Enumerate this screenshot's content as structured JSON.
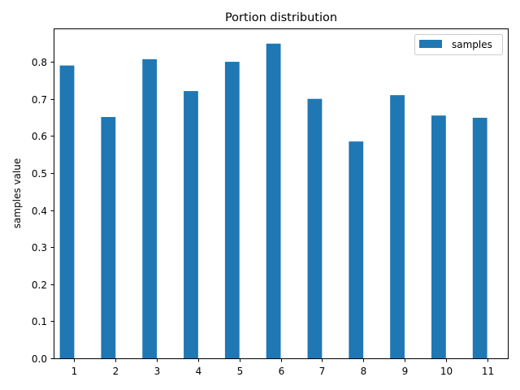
{
  "chart_data": {
    "type": "bar",
    "title": "Portion distribution",
    "xlabel": "",
    "ylabel": "samples value",
    "categories": [
      "1",
      "2",
      "3",
      "4",
      "5",
      "6",
      "7",
      "8",
      "9",
      "10",
      "11"
    ],
    "series": [
      {
        "name": "samples",
        "color": "#1f77b4",
        "values": [
          0.79,
          0.651,
          0.807,
          0.721,
          0.8,
          0.849,
          0.7,
          0.585,
          0.71,
          0.655,
          0.649
        ]
      }
    ],
    "ylim": [
      0,
      0.89
    ],
    "yticks": [
      0.0,
      0.1,
      0.2,
      0.3,
      0.4,
      0.5,
      0.6,
      0.7,
      0.8
    ],
    "ytick_labels": [
      "0.0",
      "0.1",
      "0.2",
      "0.3",
      "0.4",
      "0.5",
      "0.6",
      "0.7",
      "0.8"
    ],
    "grid": false,
    "legend": {
      "position": "upper right"
    }
  }
}
